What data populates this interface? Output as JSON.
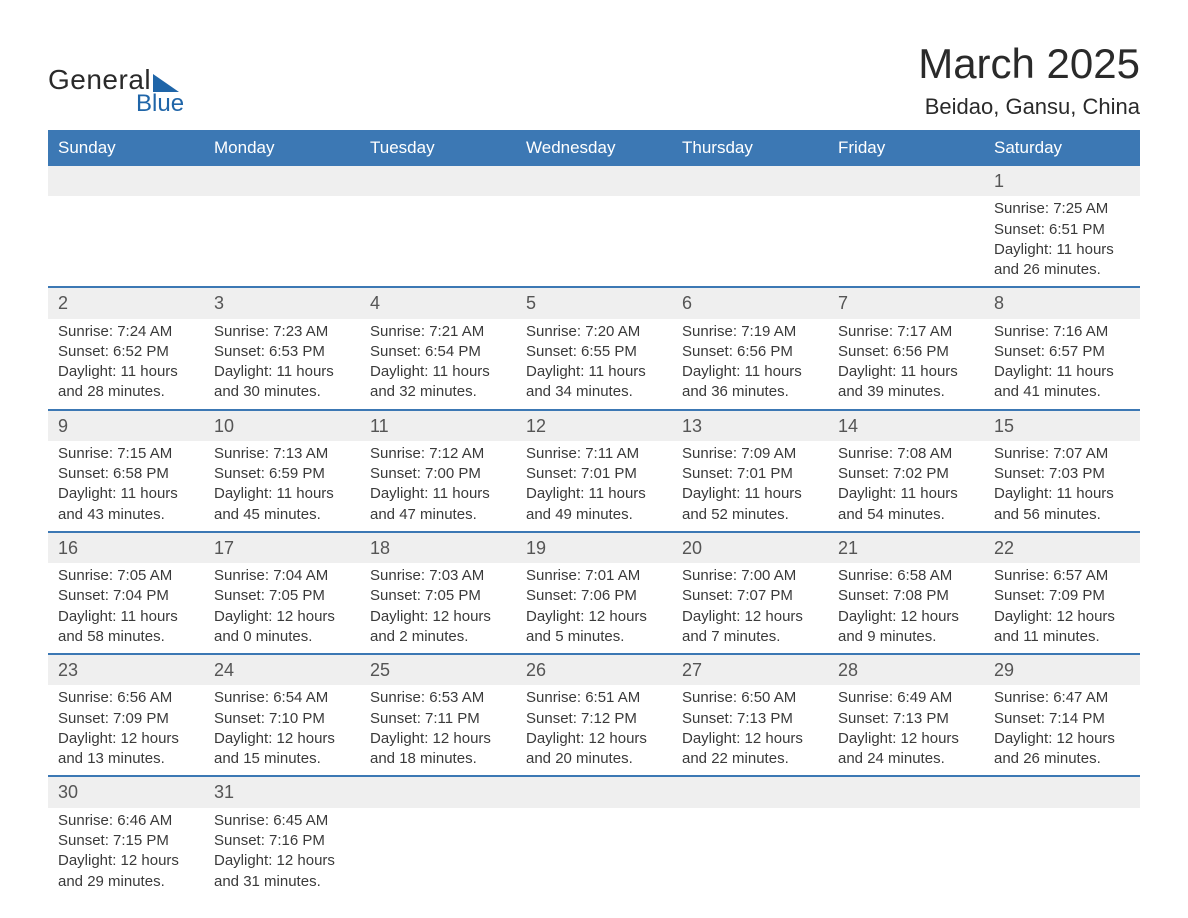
{
  "brand": {
    "part1": "General",
    "part2": "Blue",
    "accent_color": "#1f65a8"
  },
  "title": "March 2025",
  "location": "Beidao, Gansu, China",
  "header_bg": "#3c78b4",
  "daynum_bg": "#efefef",
  "text_color": "#3a3a3a",
  "weekdays": [
    "Sunday",
    "Monday",
    "Tuesday",
    "Wednesday",
    "Thursday",
    "Friday",
    "Saturday"
  ],
  "weeks": [
    [
      null,
      null,
      null,
      null,
      null,
      null,
      {
        "n": "1",
        "sunrise": "7:25 AM",
        "sunset": "6:51 PM",
        "dl": "11 hours and 26 minutes."
      }
    ],
    [
      {
        "n": "2",
        "sunrise": "7:24 AM",
        "sunset": "6:52 PM",
        "dl": "11 hours and 28 minutes."
      },
      {
        "n": "3",
        "sunrise": "7:23 AM",
        "sunset": "6:53 PM",
        "dl": "11 hours and 30 minutes."
      },
      {
        "n": "4",
        "sunrise": "7:21 AM",
        "sunset": "6:54 PM",
        "dl": "11 hours and 32 minutes."
      },
      {
        "n": "5",
        "sunrise": "7:20 AM",
        "sunset": "6:55 PM",
        "dl": "11 hours and 34 minutes."
      },
      {
        "n": "6",
        "sunrise": "7:19 AM",
        "sunset": "6:56 PM",
        "dl": "11 hours and 36 minutes."
      },
      {
        "n": "7",
        "sunrise": "7:17 AM",
        "sunset": "6:56 PM",
        "dl": "11 hours and 39 minutes."
      },
      {
        "n": "8",
        "sunrise": "7:16 AM",
        "sunset": "6:57 PM",
        "dl": "11 hours and 41 minutes."
      }
    ],
    [
      {
        "n": "9",
        "sunrise": "7:15 AM",
        "sunset": "6:58 PM",
        "dl": "11 hours and 43 minutes."
      },
      {
        "n": "10",
        "sunrise": "7:13 AM",
        "sunset": "6:59 PM",
        "dl": "11 hours and 45 minutes."
      },
      {
        "n": "11",
        "sunrise": "7:12 AM",
        "sunset": "7:00 PM",
        "dl": "11 hours and 47 minutes."
      },
      {
        "n": "12",
        "sunrise": "7:11 AM",
        "sunset": "7:01 PM",
        "dl": "11 hours and 49 minutes."
      },
      {
        "n": "13",
        "sunrise": "7:09 AM",
        "sunset": "7:01 PM",
        "dl": "11 hours and 52 minutes."
      },
      {
        "n": "14",
        "sunrise": "7:08 AM",
        "sunset": "7:02 PM",
        "dl": "11 hours and 54 minutes."
      },
      {
        "n": "15",
        "sunrise": "7:07 AM",
        "sunset": "7:03 PM",
        "dl": "11 hours and 56 minutes."
      }
    ],
    [
      {
        "n": "16",
        "sunrise": "7:05 AM",
        "sunset": "7:04 PM",
        "dl": "11 hours and 58 minutes."
      },
      {
        "n": "17",
        "sunrise": "7:04 AM",
        "sunset": "7:05 PM",
        "dl": "12 hours and 0 minutes."
      },
      {
        "n": "18",
        "sunrise": "7:03 AM",
        "sunset": "7:05 PM",
        "dl": "12 hours and 2 minutes."
      },
      {
        "n": "19",
        "sunrise": "7:01 AM",
        "sunset": "7:06 PM",
        "dl": "12 hours and 5 minutes."
      },
      {
        "n": "20",
        "sunrise": "7:00 AM",
        "sunset": "7:07 PM",
        "dl": "12 hours and 7 minutes."
      },
      {
        "n": "21",
        "sunrise": "6:58 AM",
        "sunset": "7:08 PM",
        "dl": "12 hours and 9 minutes."
      },
      {
        "n": "22",
        "sunrise": "6:57 AM",
        "sunset": "7:09 PM",
        "dl": "12 hours and 11 minutes."
      }
    ],
    [
      {
        "n": "23",
        "sunrise": "6:56 AM",
        "sunset": "7:09 PM",
        "dl": "12 hours and 13 minutes."
      },
      {
        "n": "24",
        "sunrise": "6:54 AM",
        "sunset": "7:10 PM",
        "dl": "12 hours and 15 minutes."
      },
      {
        "n": "25",
        "sunrise": "6:53 AM",
        "sunset": "7:11 PM",
        "dl": "12 hours and 18 minutes."
      },
      {
        "n": "26",
        "sunrise": "6:51 AM",
        "sunset": "7:12 PM",
        "dl": "12 hours and 20 minutes."
      },
      {
        "n": "27",
        "sunrise": "6:50 AM",
        "sunset": "7:13 PM",
        "dl": "12 hours and 22 minutes."
      },
      {
        "n": "28",
        "sunrise": "6:49 AM",
        "sunset": "7:13 PM",
        "dl": "12 hours and 24 minutes."
      },
      {
        "n": "29",
        "sunrise": "6:47 AM",
        "sunset": "7:14 PM",
        "dl": "12 hours and 26 minutes."
      }
    ],
    [
      {
        "n": "30",
        "sunrise": "6:46 AM",
        "sunset": "7:15 PM",
        "dl": "12 hours and 29 minutes."
      },
      {
        "n": "31",
        "sunrise": "6:45 AM",
        "sunset": "7:16 PM",
        "dl": "12 hours and 31 minutes."
      },
      null,
      null,
      null,
      null,
      null
    ]
  ],
  "labels": {
    "sunrise": "Sunrise: ",
    "sunset": "Sunset: ",
    "daylight": "Daylight: "
  }
}
